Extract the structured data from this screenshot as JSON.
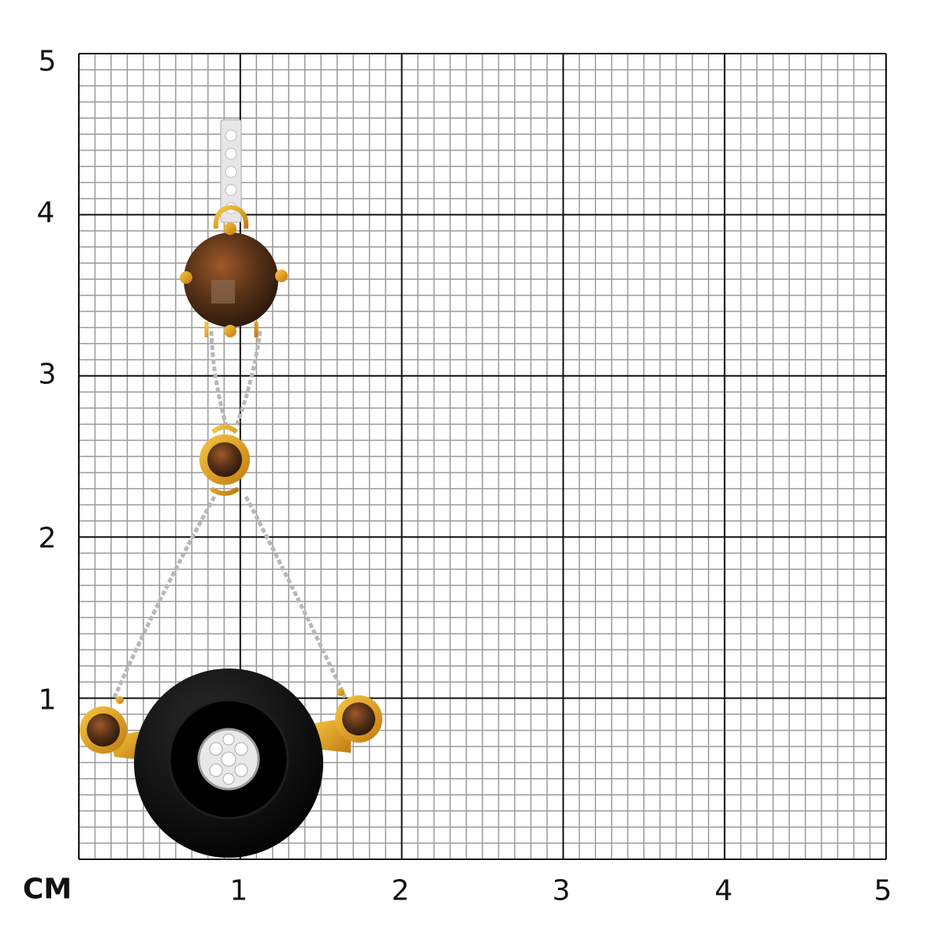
{
  "scale": {
    "unit_label": "CM",
    "x_ticks": [
      "1",
      "2",
      "3",
      "4",
      "5"
    ],
    "y_ticks": [
      "5",
      "4",
      "3",
      "2",
      "1"
    ],
    "range_cm": [
      0,
      5
    ],
    "minor_divisions_per_cm": 10
  },
  "colors": {
    "minor_grid": "#9a9a9a",
    "major_grid": "#111111",
    "gold": "#e0a020",
    "smoky_quartz": "#5a3418",
    "onyx": "#0c0c0c",
    "silver": "#d8d8d8"
  },
  "image": {
    "subject": "pendant-with-smoky-quartz-onyx-and-diamonds"
  }
}
